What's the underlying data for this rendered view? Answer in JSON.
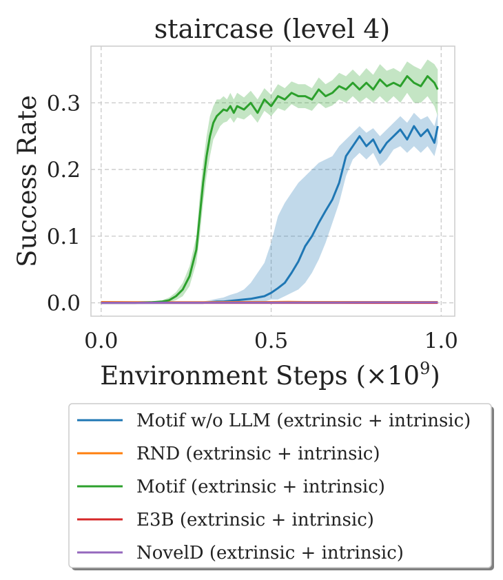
{
  "chart_data": {
    "type": "line",
    "title": "staircase (level 4)",
    "xlabel": "Environment Steps (×10",
    "xlabel_exp": "9",
    "xlabel_close": ")",
    "ylabel": "Success Rate",
    "xlim": [
      -0.03,
      1.04
    ],
    "ylim": [
      -0.02,
      0.385
    ],
    "xticks": [
      0.0,
      0.5,
      1.0
    ],
    "xtick_labels": [
      "0.0",
      "0.5",
      "1.0"
    ],
    "yticks": [
      0.0,
      0.1,
      0.2,
      0.3
    ],
    "ytick_labels": [
      "0.0",
      "0.1",
      "0.2",
      "0.3"
    ],
    "grid": true,
    "legend_position": "bottom-outside",
    "series": [
      {
        "name": "Motif w/o LLM (extrinsic + intrinsic)",
        "color": "#1f77b4",
        "x": [
          0.0,
          0.05,
          0.1,
          0.15,
          0.2,
          0.25,
          0.3,
          0.32,
          0.34,
          0.36,
          0.38,
          0.4,
          0.42,
          0.44,
          0.46,
          0.48,
          0.5,
          0.52,
          0.54,
          0.56,
          0.58,
          0.6,
          0.62,
          0.64,
          0.66,
          0.68,
          0.7,
          0.72,
          0.74,
          0.76,
          0.78,
          0.8,
          0.82,
          0.84,
          0.86,
          0.88,
          0.9,
          0.92,
          0.94,
          0.96,
          0.98,
          0.99
        ],
        "y": [
          0.0,
          0.0,
          0.0,
          0.0,
          0.0,
          0.0,
          0.0,
          0.001,
          0.002,
          0.002,
          0.003,
          0.004,
          0.005,
          0.006,
          0.008,
          0.01,
          0.015,
          0.022,
          0.03,
          0.045,
          0.062,
          0.085,
          0.1,
          0.12,
          0.138,
          0.155,
          0.18,
          0.22,
          0.235,
          0.25,
          0.235,
          0.245,
          0.225,
          0.24,
          0.25,
          0.26,
          0.245,
          0.265,
          0.25,
          0.26,
          0.24,
          0.265
        ],
        "lower": [
          0.0,
          0.0,
          0.0,
          0.0,
          0.0,
          0.0,
          0.0,
          0.0,
          0.0,
          0.0,
          0.0,
          0.0,
          0.0,
          0.0,
          0.0,
          0.002,
          0.005,
          0.005,
          0.01,
          0.015,
          0.02,
          0.03,
          0.045,
          0.065,
          0.09,
          0.12,
          0.15,
          0.19,
          0.215,
          0.225,
          0.215,
          0.225,
          0.205,
          0.215,
          0.23,
          0.235,
          0.225,
          0.235,
          0.225,
          0.235,
          0.22,
          0.24
        ],
        "upper": [
          0.0,
          0.0,
          0.0,
          0.0,
          0.0,
          0.001,
          0.002,
          0.004,
          0.006,
          0.008,
          0.012,
          0.015,
          0.02,
          0.03,
          0.045,
          0.06,
          0.09,
          0.13,
          0.15,
          0.165,
          0.18,
          0.19,
          0.2,
          0.21,
          0.215,
          0.22,
          0.235,
          0.245,
          0.255,
          0.265,
          0.255,
          0.262,
          0.25,
          0.26,
          0.27,
          0.28,
          0.27,
          0.285,
          0.275,
          0.28,
          0.265,
          0.285
        ]
      },
      {
        "name": "RND (extrinsic + intrinsic)",
        "color": "#ff7f0e",
        "x": [
          0.0,
          0.1,
          0.2,
          0.3,
          0.4,
          0.5,
          0.55,
          0.6,
          0.7,
          0.8,
          0.9,
          0.99
        ],
        "y": [
          0.0012,
          0.001,
          0.001,
          0.001,
          0.0012,
          0.0012,
          0.0014,
          0.0012,
          0.0012,
          0.0012,
          0.0012,
          0.0012
        ],
        "lower": [
          0.0005,
          0.0005,
          0.0005,
          0.0005,
          0.0005,
          0.0005,
          0.0005,
          0.0005,
          0.0005,
          0.0005,
          0.0005,
          0.0005
        ],
        "upper": [
          0.002,
          0.0018,
          0.0018,
          0.0018,
          0.002,
          0.002,
          0.0022,
          0.002,
          0.002,
          0.002,
          0.002,
          0.002
        ]
      },
      {
        "name": "Motif (extrinsic + intrinsic)",
        "color": "#2ca02c",
        "x": [
          0.0,
          0.05,
          0.1,
          0.15,
          0.18,
          0.2,
          0.22,
          0.24,
          0.26,
          0.28,
          0.29,
          0.3,
          0.31,
          0.32,
          0.33,
          0.34,
          0.35,
          0.36,
          0.37,
          0.38,
          0.39,
          0.4,
          0.42,
          0.44,
          0.46,
          0.48,
          0.5,
          0.52,
          0.54,
          0.56,
          0.58,
          0.6,
          0.62,
          0.64,
          0.66,
          0.68,
          0.7,
          0.72,
          0.74,
          0.76,
          0.78,
          0.8,
          0.82,
          0.84,
          0.86,
          0.88,
          0.9,
          0.92,
          0.94,
          0.96,
          0.98,
          0.99
        ],
        "y": [
          0.0,
          0.0,
          0.0,
          0.001,
          0.002,
          0.004,
          0.01,
          0.02,
          0.04,
          0.08,
          0.13,
          0.18,
          0.22,
          0.25,
          0.27,
          0.28,
          0.285,
          0.29,
          0.288,
          0.295,
          0.285,
          0.295,
          0.29,
          0.3,
          0.285,
          0.305,
          0.295,
          0.31,
          0.305,
          0.315,
          0.31,
          0.31,
          0.305,
          0.32,
          0.31,
          0.315,
          0.325,
          0.32,
          0.33,
          0.32,
          0.33,
          0.32,
          0.335,
          0.325,
          0.33,
          0.325,
          0.34,
          0.33,
          0.325,
          0.34,
          0.33,
          0.32
        ],
        "lower": [
          0.0,
          0.0,
          0.0,
          0.0,
          0.0,
          0.001,
          0.004,
          0.01,
          0.025,
          0.06,
          0.1,
          0.15,
          0.19,
          0.22,
          0.245,
          0.255,
          0.265,
          0.27,
          0.272,
          0.278,
          0.27,
          0.278,
          0.275,
          0.283,
          0.27,
          0.288,
          0.28,
          0.292,
          0.288,
          0.298,
          0.292,
          0.292,
          0.288,
          0.3,
          0.292,
          0.296,
          0.305,
          0.3,
          0.31,
          0.3,
          0.308,
          0.3,
          0.31,
          0.3,
          0.31,
          0.3,
          0.315,
          0.3,
          0.3,
          0.31,
          0.295,
          0.28
        ],
        "upper": [
          0.0,
          0.0,
          0.001,
          0.002,
          0.004,
          0.008,
          0.016,
          0.03,
          0.055,
          0.1,
          0.16,
          0.21,
          0.25,
          0.28,
          0.295,
          0.305,
          0.305,
          0.31,
          0.305,
          0.315,
          0.305,
          0.315,
          0.308,
          0.318,
          0.305,
          0.322,
          0.312,
          0.328,
          0.322,
          0.332,
          0.328,
          0.328,
          0.322,
          0.338,
          0.328,
          0.334,
          0.345,
          0.34,
          0.35,
          0.34,
          0.352,
          0.342,
          0.358,
          0.348,
          0.352,
          0.346,
          0.362,
          0.355,
          0.35,
          0.365,
          0.358,
          0.35
        ]
      },
      {
        "name": "E3B (extrinsic + intrinsic)",
        "color": "#d62728",
        "x": [
          0.0,
          0.2,
          0.4,
          0.6,
          0.8,
          0.99
        ],
        "y": [
          0.0,
          0.0,
          0.0,
          0.0,
          0.0,
          0.0
        ],
        "lower": [
          0.0,
          0.0,
          0.0,
          0.0,
          0.0,
          0.0
        ],
        "upper": [
          0.0005,
          0.0005,
          0.0005,
          0.0005,
          0.0005,
          0.0005
        ]
      },
      {
        "name": "NovelD (extrinsic + intrinsic)",
        "color": "#9467bd",
        "x": [
          0.0,
          0.1,
          0.2,
          0.3,
          0.4,
          0.5,
          0.6,
          0.7,
          0.8,
          0.9,
          0.99
        ],
        "y": [
          0.0,
          0.0,
          0.0002,
          0.0003,
          0.0004,
          0.0005,
          0.0006,
          0.0006,
          0.0008,
          0.0008,
          0.0008
        ],
        "lower": [
          0.0,
          0.0,
          0.0,
          0.0,
          0.0,
          0.0,
          0.0,
          0.0,
          0.0,
          0.0,
          0.0
        ],
        "upper": [
          0.0005,
          0.0005,
          0.0008,
          0.001,
          0.0012,
          0.0014,
          0.0014,
          0.0015,
          0.0016,
          0.0016,
          0.0016
        ]
      }
    ]
  }
}
